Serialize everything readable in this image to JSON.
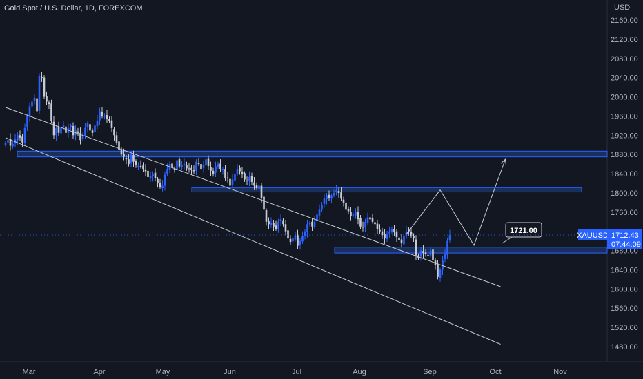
{
  "header": {
    "title": "Gold Spot / U.S. Dollar, 1D, FOREXCOM"
  },
  "colors": {
    "background": "#131722",
    "up": "#2962ff",
    "down": "#c8cbd3",
    "zone": "#1c3a74",
    "zone_border": "#2962ff",
    "line": "#c8cbd3",
    "price_tag": "#2962ff"
  },
  "chart_data": {
    "type": "candlestick",
    "currency_label": "USD",
    "ylim": [
      1460,
      2180
    ],
    "yticks": [
      1480,
      1520,
      1560,
      1600,
      1640,
      1680,
      1720,
      1760,
      1800,
      1840,
      1880,
      1920,
      1960,
      2000,
      2040,
      2080,
      2120,
      2160
    ],
    "ytick_labels": [
      "1480.00",
      "1520.00",
      "1560.00",
      "1600.00",
      "1640.00",
      "1680.00",
      "1720.00",
      "1760.00",
      "1800.00",
      "1840.00",
      "1880.00",
      "1920.00",
      "1960.00",
      "2000.00",
      "2040.00",
      "2080.00",
      "2120.00",
      "2160.00"
    ],
    "months": [
      "Mar",
      "Apr",
      "May",
      "Jun",
      "Jul",
      "Aug",
      "Sep",
      "Oct",
      "Nov"
    ],
    "closes": [
      1905,
      1910,
      1898,
      1902,
      1912,
      1920,
      1915,
      1905,
      1935,
      1960,
      1980,
      1990,
      1998,
      1970,
      2043,
      2040,
      2000,
      1990,
      1985,
      1950,
      1920,
      1935,
      1925,
      1935,
      1940,
      1925,
      1935,
      1940,
      1920,
      1930,
      1925,
      1910,
      1920,
      1935,
      1945,
      1930,
      1925,
      1940,
      1950,
      1970,
      1960,
      1960,
      1955,
      1950,
      1935,
      1920,
      1905,
      1890,
      1880,
      1875,
      1870,
      1860,
      1880,
      1865,
      1858,
      1856,
      1855,
      1850,
      1845,
      1833,
      1835,
      1840,
      1830,
      1820,
      1812,
      1815,
      1838,
      1850,
      1860,
      1852,
      1848,
      1868,
      1855,
      1858,
      1860,
      1851,
      1850,
      1848,
      1845,
      1865,
      1860,
      1850,
      1858,
      1870,
      1856,
      1846,
      1840,
      1855,
      1860,
      1850,
      1850,
      1830,
      1830,
      1815,
      1828,
      1840,
      1850,
      1845,
      1840,
      1828,
      1825,
      1833,
      1823,
      1815,
      1810,
      1815,
      1790,
      1765,
      1740,
      1735,
      1737,
      1730,
      1725,
      1740,
      1745,
      1735,
      1720,
      1705,
      1698,
      1705,
      1712,
      1690,
      1700,
      1710,
      1720,
      1735,
      1738,
      1730,
      1740,
      1755,
      1765,
      1775,
      1788,
      1795,
      1790,
      1795,
      1800,
      1805,
      1800,
      1788,
      1780,
      1765,
      1762,
      1752,
      1755,
      1760,
      1745,
      1730,
      1728,
      1740,
      1749,
      1745,
      1740,
      1735,
      1725,
      1720,
      1712,
      1705,
      1715,
      1720,
      1725,
      1718,
      1708,
      1702,
      1695,
      1710,
      1720,
      1720,
      1710,
      1705,
      1670,
      1665,
      1680,
      1675,
      1673,
      1670,
      1680,
      1660,
      1650,
      1625,
      1640,
      1660,
      1672,
      1700,
      1712
    ],
    "series": [
      {
        "name": "XAUUSD"
      }
    ],
    "zones": [
      {
        "from": 1875,
        "to": 1887
      },
      {
        "from": 1802,
        "to": 1811
      },
      {
        "from": 1675,
        "to": 1687
      }
    ],
    "channel": [
      {
        "from": [
          0,
          1978
        ],
        "to": [
          205,
          1605
        ]
      },
      {
        "from": [
          0,
          1915
        ],
        "to": [
          205,
          1485
        ]
      }
    ],
    "projection": [
      [
        166,
        1714
      ],
      [
        180,
        1806
      ],
      [
        194,
        1691
      ],
      [
        207,
        1870
      ]
    ],
    "annotation": {
      "label": "1721.00",
      "price": 1721
    },
    "last_price": {
      "symbol": "XAUUSD",
      "value": "1712.43",
      "countdown": "07:44:09",
      "price": 1712.43
    }
  }
}
